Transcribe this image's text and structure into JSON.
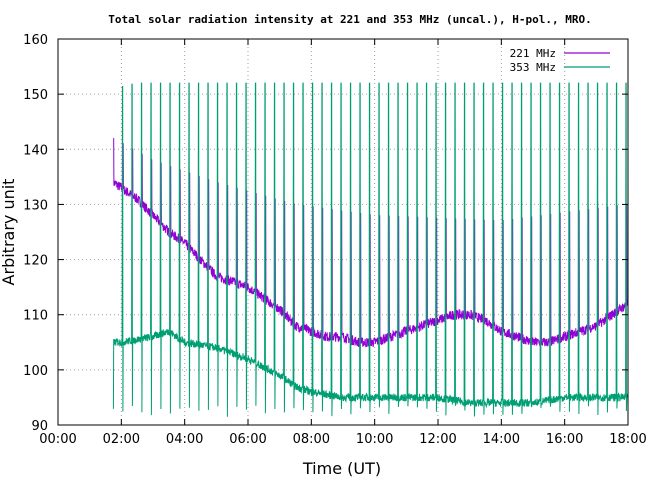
{
  "chart_data": {
    "type": "line",
    "title": "Total solar radiation intensity at 221 and 353 MHz (uncal.), H-pol., MRO.",
    "xlabel": "Time (UT)",
    "ylabel": "Arbitrary unit",
    "xlim": [
      "00:00",
      "18:00"
    ],
    "ylim": [
      90,
      160
    ],
    "x_ticks": [
      "00:00",
      "02:00",
      "04:00",
      "06:00",
      "08:00",
      "10:00",
      "12:00",
      "14:00",
      "16:00",
      "18:00"
    ],
    "y_ticks": [
      90,
      100,
      110,
      120,
      130,
      140,
      150,
      160
    ],
    "grid": true,
    "legend_position": "top-right",
    "data_start": "01:45",
    "data_end": "18:00",
    "calibration_pulse_spacing_minutes": 18,
    "series": [
      {
        "name": "221 MHz",
        "color": "#9400d3",
        "baseline": {
          "x": [
            "01:45",
            "02:00",
            "02:30",
            "03:00",
            "03:30",
            "04:00",
            "04:30",
            "05:00",
            "05:30",
            "06:00",
            "06:30",
            "07:00",
            "07:30",
            "08:00",
            "08:30",
            "09:00",
            "09:30",
            "10:00",
            "10:30",
            "11:00",
            "11:30",
            "12:00",
            "12:30",
            "13:00",
            "13:30",
            "14:00",
            "14:30",
            "15:00",
            "15:30",
            "16:00",
            "16:30",
            "17:00",
            "17:30",
            "18:00"
          ],
          "y": [
            134,
            133,
            131,
            128,
            125,
            123,
            120,
            117,
            116,
            115,
            113,
            111,
            108,
            107,
            106,
            106,
            105,
            105,
            106,
            107,
            108,
            109,
            110,
            110,
            109,
            107,
            106,
            105,
            105,
            106,
            107,
            108,
            110,
            112
          ]
        },
        "pulse_peak": {
          "x": [
            "01:45",
            "03:00",
            "05:00",
            "07:30",
            "10:00",
            "14:00",
            "18:00"
          ],
          "y": [
            142,
            138,
            134,
            130,
            128,
            127,
            130
          ]
        }
      },
      {
        "name": "353 MHz",
        "color": "#009e73",
        "baseline": {
          "x": [
            "01:45",
            "02:00",
            "03:00",
            "03:30",
            "04:00",
            "05:00",
            "06:00",
            "07:00",
            "07:30",
            "08:00",
            "09:00",
            "10:00",
            "11:00",
            "12:00",
            "13:00",
            "14:00",
            "15:00",
            "16:00",
            "17:00",
            "18:00"
          ],
          "y": [
            105,
            105,
            106,
            107,
            105,
            104,
            102,
            99,
            97,
            96,
            95,
            95,
            95,
            95,
            94,
            94,
            94,
            95,
            95,
            95
          ]
        },
        "pulse_peak": {
          "x": [
            "01:45",
            "02:30",
            "04:00",
            "18:00"
          ],
          "y": [
            151,
            152,
            152,
            152
          ]
        }
      }
    ]
  }
}
